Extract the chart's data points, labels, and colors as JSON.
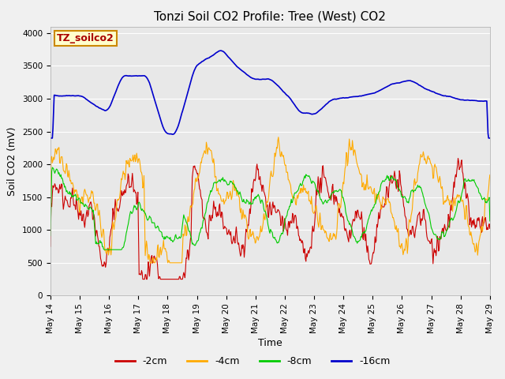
{
  "title": "Tonzi Soil CO2 Profile: Tree (West) CO2",
  "xlabel": "Time",
  "ylabel": "Soil CO2 (mV)",
  "legend_label": "TZ_soilco2",
  "series_labels": [
    "-2cm",
    "-4cm",
    "-8cm",
    "-16cm"
  ],
  "series_colors": [
    "#cc0000",
    "#ffaa00",
    "#00cc00",
    "#0000cc"
  ],
  "ylim": [
    0,
    4100
  ],
  "xlim": [
    0,
    15
  ],
  "fig_bg": "#f0f0f0",
  "ax_bg": "#e8e8e8",
  "tick_labels": [
    "May 14",
    "May 15",
    "May 16",
    "May 17",
    "May 18",
    "May 19",
    "May 20",
    "May 21",
    "May 22",
    "May 23",
    "May 24",
    "May 25",
    "May 26",
    "May 27",
    "May 28",
    "May 29"
  ],
  "n_points": 720,
  "title_fontsize": 11,
  "axis_fontsize": 9,
  "tick_fontsize": 7.5
}
